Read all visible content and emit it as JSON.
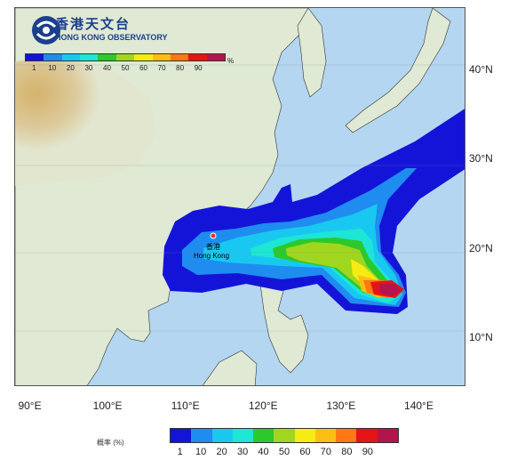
{
  "organisation": {
    "name_zh": "香港天文台",
    "name_en": "HONG KONG OBSERVATORY"
  },
  "legend": {
    "title": "概率 (%)",
    "unit": "%",
    "ticks": [
      "1",
      "10",
      "20",
      "30",
      "40",
      "50",
      "60",
      "70",
      "80",
      "90"
    ],
    "colors": [
      "#1414d8",
      "#1f8cf0",
      "#19c8f0",
      "#1ee6d4",
      "#2cc82c",
      "#a0d61e",
      "#f5ec14",
      "#ffbe14",
      "#ff7814",
      "#e61414",
      "#b4144e"
    ]
  },
  "location": {
    "name_zh": "香港",
    "name_en": "Hong Kong"
  },
  "axes": {
    "lon_labels": [
      "90°E",
      "100°E",
      "110°E",
      "120°E",
      "130°E",
      "140°E"
    ],
    "lat_labels": [
      "40°N",
      "30°N",
      "20°N",
      "10°N"
    ],
    "lon_range": [
      88,
      146
    ],
    "lat_range": [
      4.5,
      47
    ]
  },
  "colors": {
    "sea": "#b4d6f0",
    "land_low": "#dfe9d3",
    "land_high": "#d9c08a",
    "logo": "#1c3f8c",
    "hk_marker": "#e53030"
  }
}
